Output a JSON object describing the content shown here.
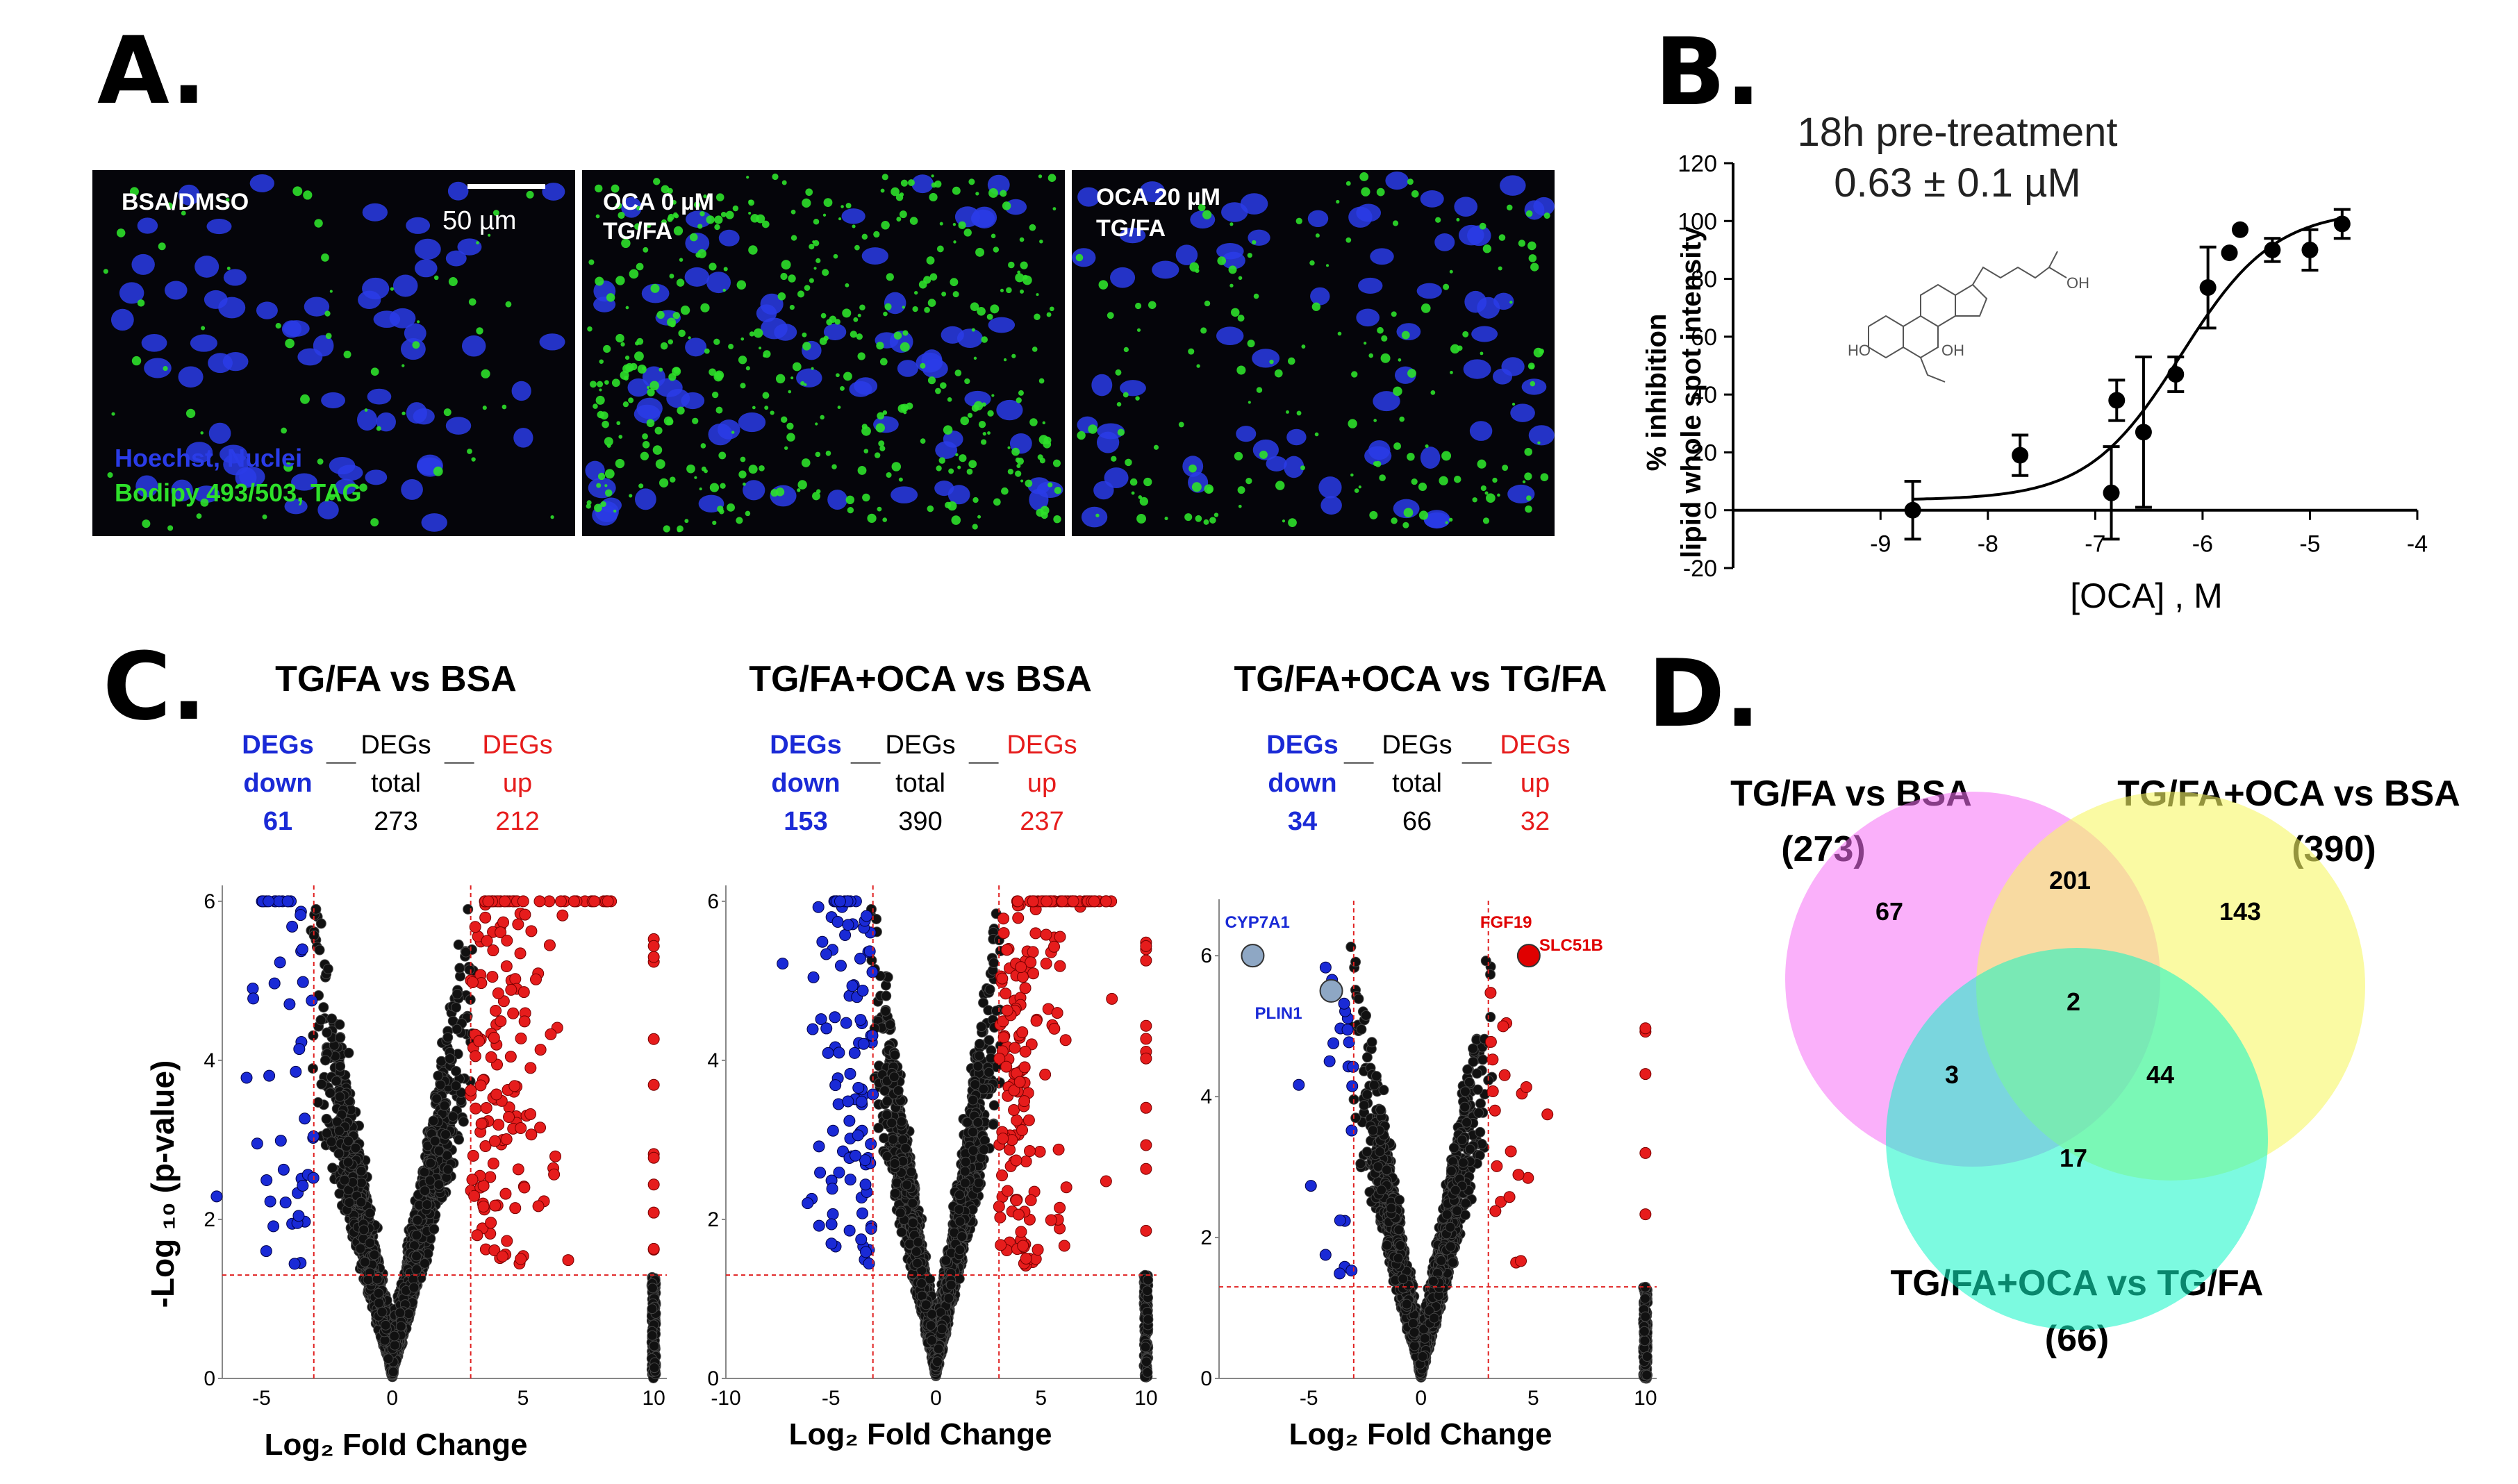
{
  "panels": {
    "a": "A.",
    "b": "B.",
    "c": "C.",
    "d": "D."
  },
  "panel_a": {
    "images": [
      {
        "label_lines": [
          "BSA/DMSO"
        ],
        "green_density": 0.15
      },
      {
        "label_lines": [
          "OCA 0 µM",
          "TG/FA"
        ],
        "green_density": 1.0
      },
      {
        "label_lines": [
          "OCA 20 µM",
          "TG/FA"
        ],
        "green_density": 0.4
      }
    ],
    "scale_bar": "50  µm",
    "legend_nuclei": "Hoechst, Nuclei",
    "legend_lipid": "Bodipy 493/503, TAG",
    "colors": {
      "nuclei": "#2a3ce8",
      "lipid": "#2ee02a",
      "background": "#05050a"
    }
  },
  "chart_data": [
    {
      "type": "scatter",
      "panel": "B",
      "title_line1": "18h pre-treatment",
      "title_line2": "0.63 ± 0.1 µM",
      "ylabel_line1": "% inhibition",
      "ylabel_line2": "lipid whole spot intensity",
      "xlabel": "[OCA] , M",
      "xlim": [
        -9.5,
        -4
      ],
      "ylim": [
        -20,
        120
      ],
      "xticks": [
        "-9",
        "-8",
        "-7",
        "-6",
        "-5",
        "-4"
      ],
      "yticks": [
        "-20",
        "0",
        "20",
        "40",
        "60",
        "80",
        "100",
        "120"
      ],
      "points": [
        {
          "x": -8.7,
          "y": 0,
          "err": 10
        },
        {
          "x": -7.7,
          "y": 19,
          "err": 7
        },
        {
          "x": -6.85,
          "y": 6,
          "err": 16
        },
        {
          "x": -6.8,
          "y": 38,
          "err": 7
        },
        {
          "x": -6.55,
          "y": 27,
          "err": 26
        },
        {
          "x": -6.25,
          "y": 47,
          "err": 6
        },
        {
          "x": -5.95,
          "y": 77,
          "err": 14
        },
        {
          "x": -5.75,
          "y": 89,
          "err": 0
        },
        {
          "x": -5.65,
          "y": 97,
          "err": 0
        },
        {
          "x": -5.35,
          "y": 90,
          "err": 4
        },
        {
          "x": -5.0,
          "y": 90,
          "err": 7
        },
        {
          "x": -4.7,
          "y": 99,
          "err": 5
        }
      ],
      "fit": {
        "bottom": 3.5,
        "top": 104,
        "log_ic50": -6.2,
        "hill": 1.0
      }
    },
    {
      "type": "scatter",
      "panel": "C1",
      "title": "TG/FA  vs BSA",
      "deg_labels": {
        "down": "DEGs",
        "down2": "down",
        "total": "DEGs",
        "total2": "total",
        "up": "DEGs",
        "up2": "up"
      },
      "deg_counts": {
        "down": "61",
        "total": "273",
        "up": "212"
      },
      "xlabel": "Log₂ Fold Change",
      "ylabel": "-Log ₁₀ (p-value)",
      "xticks": [
        "-5",
        "0",
        "5",
        "10"
      ],
      "yticks": [
        "0",
        "2",
        "4",
        "6"
      ],
      "xlim": [
        -6.5,
        10.5
      ],
      "ylim": [
        0,
        6.2
      ],
      "fc_threshold": 3,
      "p_threshold": 1.3
    },
    {
      "type": "scatter",
      "panel": "C2",
      "title": "TG/FA+OCA  vs BSA",
      "deg_labels": {
        "down": "DEGs",
        "down2": "down",
        "total": "DEGs",
        "total2": "total",
        "up": "DEGs",
        "up2": "up"
      },
      "deg_counts": {
        "down": "153",
        "total": "390",
        "up": "237"
      },
      "xlabel": "Log₂ Fold Change",
      "ylabel": "",
      "xticks": [
        "-10",
        "-5",
        "0",
        "5",
        "10"
      ],
      "yticks": [
        "0",
        "2",
        "4",
        "6"
      ],
      "xlim": [
        -10,
        10.5
      ],
      "ylim": [
        0,
        6.2
      ],
      "fc_threshold": 3,
      "p_threshold": 1.3
    },
    {
      "type": "scatter",
      "panel": "C3",
      "title": "TG/FA+OCA  vs TG/FA",
      "deg_labels": {
        "down": "DEGs",
        "down2": "down",
        "total": "DEGs",
        "total2": "total",
        "up": "DEGs",
        "up2": "up"
      },
      "deg_counts": {
        "down": "34",
        "total": "66",
        "up": "32"
      },
      "xlabel": "Log₂ Fold Change",
      "ylabel": "",
      "xticks": [
        "-5",
        "0",
        "5",
        "10"
      ],
      "yticks": [
        "0",
        "2",
        "4",
        "6"
      ],
      "xlim": [
        -9,
        10.5
      ],
      "ylim": [
        0,
        6.8
      ],
      "fc_threshold": 3,
      "p_threshold": 1.3,
      "highlighted_genes": [
        {
          "name": "CYP7A1",
          "x": -7.5,
          "y": 6.0,
          "color": "#8ea7c4"
        },
        {
          "name": "PLIN1",
          "x": -4.0,
          "y": 5.5,
          "color": "#8ea7c4"
        },
        {
          "name": "FGF19",
          "x": 4.8,
          "y": 6.0,
          "color": "#e00000"
        },
        {
          "name": "SLC51B",
          "x": 4.8,
          "y": 6.0,
          "color": "#e00000"
        }
      ]
    }
  ],
  "colors": {
    "down": "#1a2ad6",
    "total": "#000000",
    "up": "#e61c1c",
    "threshold": "#e02020",
    "venn_magenta": "#f570f5",
    "venn_yellow": "#f6f665",
    "venn_cyan": "#10f5c6"
  },
  "venn": {
    "set_a": {
      "name": "TG/FA  vs BSA",
      "count": "(273)"
    },
    "set_b": {
      "name": "TG/FA+OCA  vs BSA",
      "count": "(390)"
    },
    "set_c": {
      "name": "TG/FA+OCA  vs TG/FA",
      "count": "(66)"
    },
    "regions": {
      "a_only": "67",
      "ab": "201",
      "b_only": "143",
      "abc": "2",
      "ac": "3",
      "bc": "44",
      "c_only": "17"
    }
  }
}
